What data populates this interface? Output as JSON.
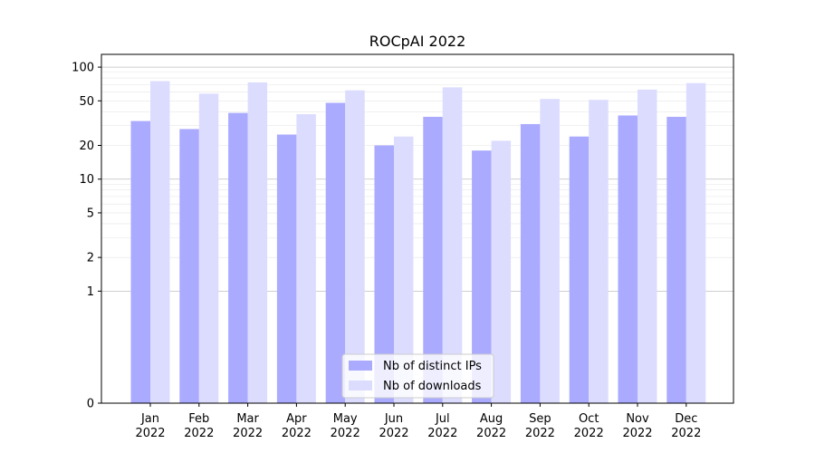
{
  "chart_data": {
    "type": "bar",
    "title": "ROCpAI 2022",
    "xlabel": "",
    "ylabel": "",
    "y_scale": "symlog",
    "ylim": [
      0,
      130
    ],
    "y_ticks": [
      0,
      1,
      2,
      5,
      10,
      20,
      50,
      100
    ],
    "y_tick_labels": [
      "0",
      "1",
      "2",
      "5",
      "10",
      "20",
      "50",
      "100"
    ],
    "grid": true,
    "legend_position": "bottom-center",
    "categories": [
      [
        "Jan",
        "2022"
      ],
      [
        "Feb",
        "2022"
      ],
      [
        "Mar",
        "2022"
      ],
      [
        "Apr",
        "2022"
      ],
      [
        "May",
        "2022"
      ],
      [
        "Jun",
        "2022"
      ],
      [
        "Jul",
        "2022"
      ],
      [
        "Aug",
        "2022"
      ],
      [
        "Sep",
        "2022"
      ],
      [
        "Oct",
        "2022"
      ],
      [
        "Nov",
        "2022"
      ],
      [
        "Dec",
        "2022"
      ]
    ],
    "series": [
      {
        "name": "Nb of distinct IPs",
        "color": "#aaaaff",
        "values": [
          33,
          28,
          39,
          25,
          48,
          20,
          36,
          18,
          31,
          24,
          37,
          36
        ]
      },
      {
        "name": "Nb of downloads",
        "color": "#dcdcff",
        "values": [
          75,
          58,
          73,
          38,
          62,
          24,
          66,
          22,
          52,
          51,
          63,
          72
        ]
      }
    ]
  }
}
